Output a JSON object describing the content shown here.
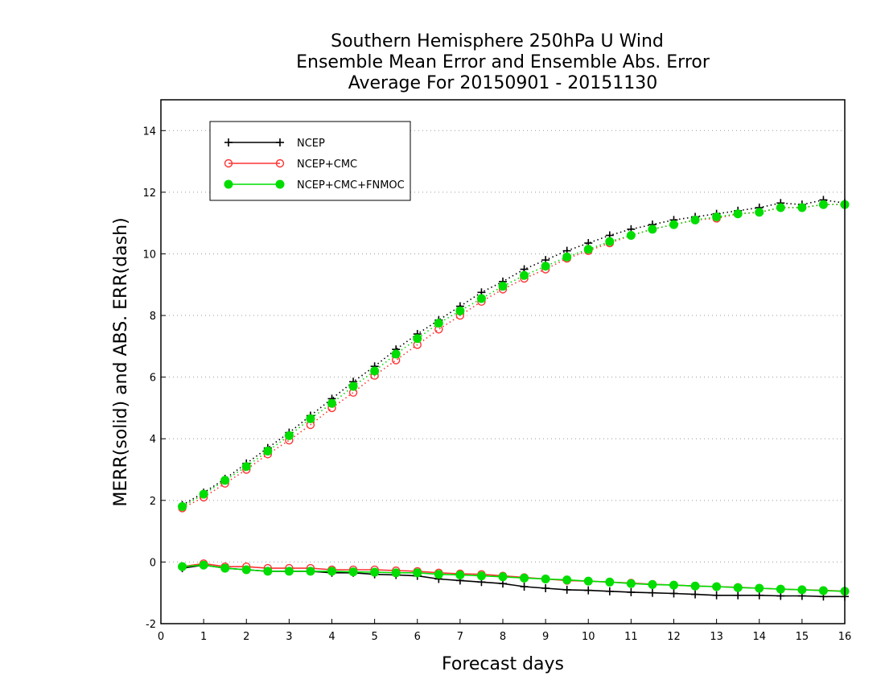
{
  "chart_data": {
    "type": "line",
    "title_lines": [
      "Southern Hemisphere 250hPa U Wind",
      "Ensemble Mean Error and Ensemble Abs. Error",
      "Average For 20150901 - 20151130"
    ],
    "xlabel": "Forecast days",
    "ylabel": "MERR(solid) and ABS. ERR(dash)",
    "xlim": [
      0,
      16
    ],
    "ylim": [
      -2,
      15
    ],
    "x_ticks": [
      "0",
      "1",
      "2",
      "3",
      "4",
      "5",
      "6",
      "7",
      "8",
      "9",
      "10",
      "11",
      "12",
      "13",
      "14",
      "15",
      "16"
    ],
    "y_ticks": [
      "-2",
      "0",
      "2",
      "4",
      "6",
      "8",
      "10",
      "12",
      "14"
    ],
    "grid": "horizontal dotted",
    "legend_position": "top-left",
    "x": [
      0.5,
      1,
      1.5,
      2,
      2.5,
      3,
      3.5,
      4,
      4.5,
      5,
      5.5,
      6,
      6.5,
      7,
      7.5,
      8,
      8.5,
      9,
      9.5,
      10,
      10.5,
      11,
      11.5,
      12,
      12.5,
      13,
      13.5,
      14,
      14.5,
      15,
      15.5,
      16
    ],
    "series": [
      {
        "name": "NCEP",
        "color": "#000000",
        "marker": "plus",
        "abs_err": [
          1.85,
          2.25,
          2.7,
          3.2,
          3.7,
          4.2,
          4.75,
          5.3,
          5.85,
          6.35,
          6.9,
          7.4,
          7.85,
          8.3,
          8.75,
          9.1,
          9.5,
          9.8,
          10.1,
          10.35,
          10.6,
          10.8,
          10.95,
          11.1,
          11.2,
          11.3,
          11.4,
          11.5,
          11.65,
          11.6,
          11.75,
          11.65
        ],
        "mean_err": [
          -0.2,
          -0.1,
          -0.2,
          -0.25,
          -0.3,
          -0.3,
          -0.3,
          -0.35,
          -0.35,
          -0.4,
          -0.42,
          -0.45,
          -0.55,
          -0.6,
          -0.65,
          -0.7,
          -0.8,
          -0.85,
          -0.9,
          -0.92,
          -0.95,
          -0.98,
          -1.0,
          -1.02,
          -1.05,
          -1.08,
          -1.08,
          -1.08,
          -1.1,
          -1.1,
          -1.12,
          -1.12
        ]
      },
      {
        "name": "NCEP+CMC",
        "color": "#ff3333",
        "marker": "circle-open",
        "abs_err": [
          1.75,
          2.1,
          2.55,
          3.0,
          3.5,
          3.95,
          4.45,
          5.0,
          5.5,
          6.05,
          6.55,
          7.05,
          7.55,
          8.0,
          8.45,
          8.85,
          9.2,
          9.5,
          9.85,
          10.1,
          10.35,
          10.6,
          10.8,
          10.95,
          11.1,
          11.15,
          11.3,
          11.35,
          11.5,
          11.5,
          11.6,
          11.6
        ],
        "mean_err": [
          -0.15,
          -0.05,
          -0.15,
          -0.15,
          -0.2,
          -0.2,
          -0.2,
          -0.25,
          -0.25,
          -0.25,
          -0.28,
          -0.3,
          -0.35,
          -0.38,
          -0.4,
          -0.45,
          -0.5,
          -0.55,
          -0.6,
          -0.62,
          -0.65,
          -0.68,
          -0.72,
          -0.75,
          -0.78,
          -0.8,
          -0.82,
          -0.85,
          -0.88,
          -0.9,
          -0.92,
          -0.95
        ]
      },
      {
        "name": "NCEP+CMC+FNMOC",
        "color": "#00dd00",
        "marker": "circle-filled",
        "abs_err": [
          1.8,
          2.2,
          2.65,
          3.1,
          3.6,
          4.1,
          4.65,
          5.15,
          5.7,
          6.2,
          6.75,
          7.25,
          7.75,
          8.15,
          8.55,
          8.95,
          9.3,
          9.6,
          9.9,
          10.15,
          10.4,
          10.6,
          10.8,
          10.95,
          11.1,
          11.2,
          11.3,
          11.35,
          11.5,
          11.5,
          11.6,
          11.6
        ],
        "mean_err": [
          -0.15,
          -0.1,
          -0.2,
          -0.25,
          -0.3,
          -0.3,
          -0.3,
          -0.3,
          -0.32,
          -0.33,
          -0.35,
          -0.35,
          -0.4,
          -0.42,
          -0.45,
          -0.48,
          -0.52,
          -0.55,
          -0.58,
          -0.62,
          -0.65,
          -0.7,
          -0.73,
          -0.75,
          -0.78,
          -0.8,
          -0.83,
          -0.85,
          -0.88,
          -0.9,
          -0.93,
          -0.95
        ]
      }
    ]
  }
}
